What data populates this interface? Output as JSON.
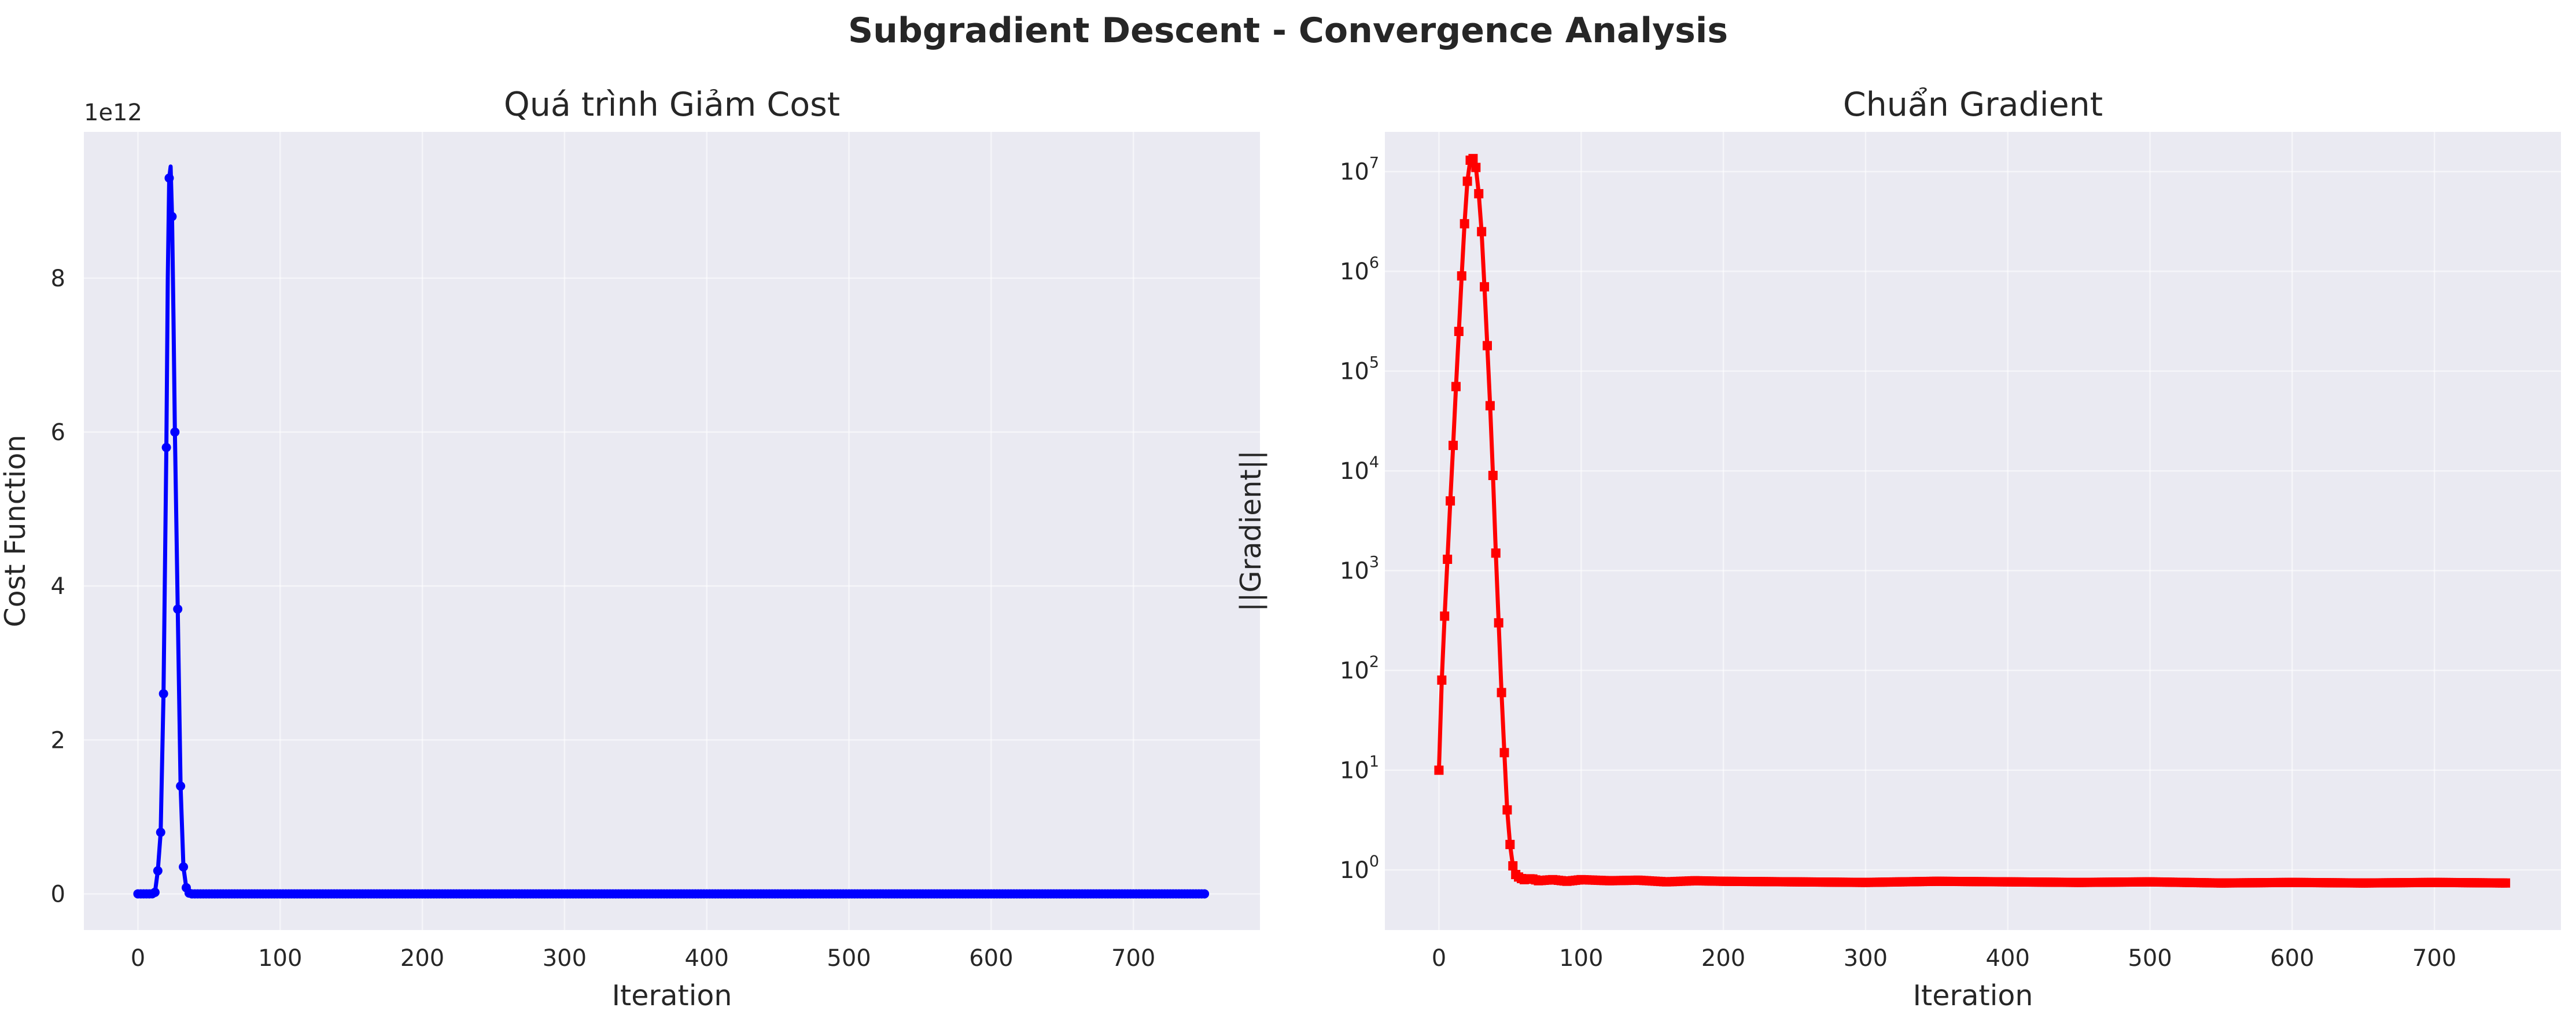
{
  "figure": {
    "suptitle": "Subgradient Descent - Convergence Analysis"
  },
  "colors": {
    "cost_series": "#0000ff",
    "gradient_series": "#ff0000",
    "axes_background": "#eaeaf2"
  },
  "chart_data": [
    {
      "type": "line",
      "title": "Quá trình Giảm Cost",
      "xlabel": "Iteration",
      "ylabel": "Cost Function",
      "y_offset_label": "1e12",
      "y_multiplier": 1000000000000.0,
      "xlim": [
        -38,
        789
      ],
      "ylim": [
        -470000000000.0,
        9900000000000.0
      ],
      "xticks": [
        0,
        100,
        200,
        300,
        400,
        500,
        600,
        700
      ],
      "yticks": [
        0,
        2,
        4,
        6,
        8
      ],
      "grid": true,
      "marker": "circle",
      "series": [
        {
          "color": "#0000ff",
          "x": [
            0,
            2,
            4,
            6,
            8,
            10,
            12,
            14,
            16,
            18,
            20,
            21,
            22,
            23,
            24,
            25,
            26,
            28,
            30,
            32,
            34,
            36,
            38,
            40,
            45,
            50,
            60,
            80,
            100,
            150,
            200,
            250,
            300,
            350,
            400,
            450,
            500,
            550,
            600,
            650,
            700,
            750
          ],
          "y": [
            0,
            0,
            0,
            0,
            0,
            1000000000.0,
            20000000000.0,
            300000000000.0,
            800000000000.0,
            2600000000000.0,
            5800000000000.0,
            8000000000000.0,
            9300000000000.0,
            9450000000000.0,
            8800000000000.0,
            7500000000000.0,
            6000000000000.0,
            3700000000000.0,
            1400000000000.0,
            350000000000.0,
            80000000000.0,
            10000000000.0,
            0,
            0,
            0,
            0,
            0,
            0,
            0,
            0,
            0,
            0,
            0,
            0,
            0,
            0,
            0,
            0,
            0,
            0,
            0,
            0
          ]
        }
      ]
    },
    {
      "type": "line",
      "title": "Chuẩn Gradient",
      "xlabel": "Iteration",
      "ylabel": "||Gradient||",
      "y_scale": "log",
      "xlim": [
        -38,
        789
      ],
      "ylim": [
        0.25,
        25000000.0
      ],
      "xticks": [
        0,
        100,
        200,
        300,
        400,
        500,
        600,
        700
      ],
      "yticks": [
        1,
        10,
        100,
        1000,
        10000,
        100000,
        1000000,
        10000000
      ],
      "ytick_exponents": [
        "0",
        "1",
        "2",
        "3",
        "4",
        "5",
        "6",
        "7"
      ],
      "ytick_base": "10",
      "grid": true,
      "marker": "square",
      "series": [
        {
          "color": "#ff0000",
          "x": [
            0,
            2,
            4,
            6,
            8,
            10,
            12,
            14,
            16,
            18,
            20,
            22,
            24,
            26,
            28,
            30,
            32,
            34,
            36,
            38,
            40,
            42,
            44,
            46,
            48,
            50,
            52,
            54,
            56,
            58,
            60,
            65,
            70,
            80,
            90,
            100,
            120,
            140,
            160,
            180,
            200,
            250,
            300,
            350,
            400,
            450,
            500,
            550,
            600,
            650,
            700,
            750
          ],
          "y": [
            10,
            80,
            350,
            1300,
            5000,
            18000,
            70000,
            250000,
            900000,
            3000000,
            8000000,
            13000000,
            13500000,
            11000000,
            6000000,
            2500000,
            700000,
            180000,
            45000,
            9000,
            1500,
            300,
            60,
            15,
            4,
            1.8,
            1.1,
            0.9,
            0.85,
            0.82,
            0.8,
            0.82,
            0.78,
            0.8,
            0.77,
            0.8,
            0.78,
            0.79,
            0.76,
            0.78,
            0.77,
            0.76,
            0.75,
            0.77,
            0.76,
            0.75,
            0.76,
            0.74,
            0.75,
            0.74,
            0.75,
            0.74
          ]
        }
      ]
    }
  ]
}
